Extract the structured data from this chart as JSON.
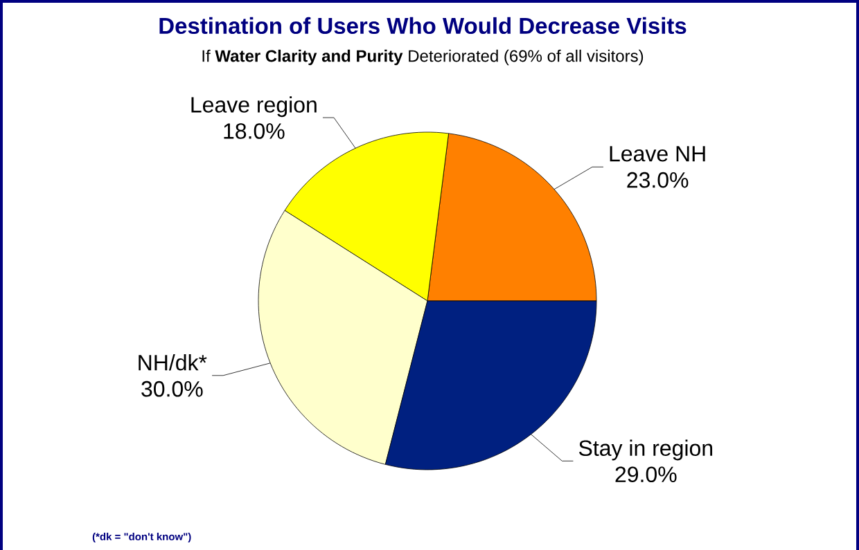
{
  "chart_data": {
    "type": "pie",
    "title": "Destination of Users Who Would Decrease Visits",
    "subtitle": "If **Water Clarity and Purity** Deteriorated (69% of all visitors)",
    "categories": [
      "Leave NH",
      "Leave region",
      "NH/dk*",
      "Stay in region"
    ],
    "values": [
      23,
      18,
      30,
      29
    ],
    "value_labels": [
      "23.0%",
      "18.0%",
      "30.0%",
      "29.0%"
    ],
    "colors": [
      "#ff8000",
      "#ffff00",
      "#ffffcc",
      "#002080"
    ],
    "annotations": [
      "(*dk = \"don't know\")"
    ]
  }
}
